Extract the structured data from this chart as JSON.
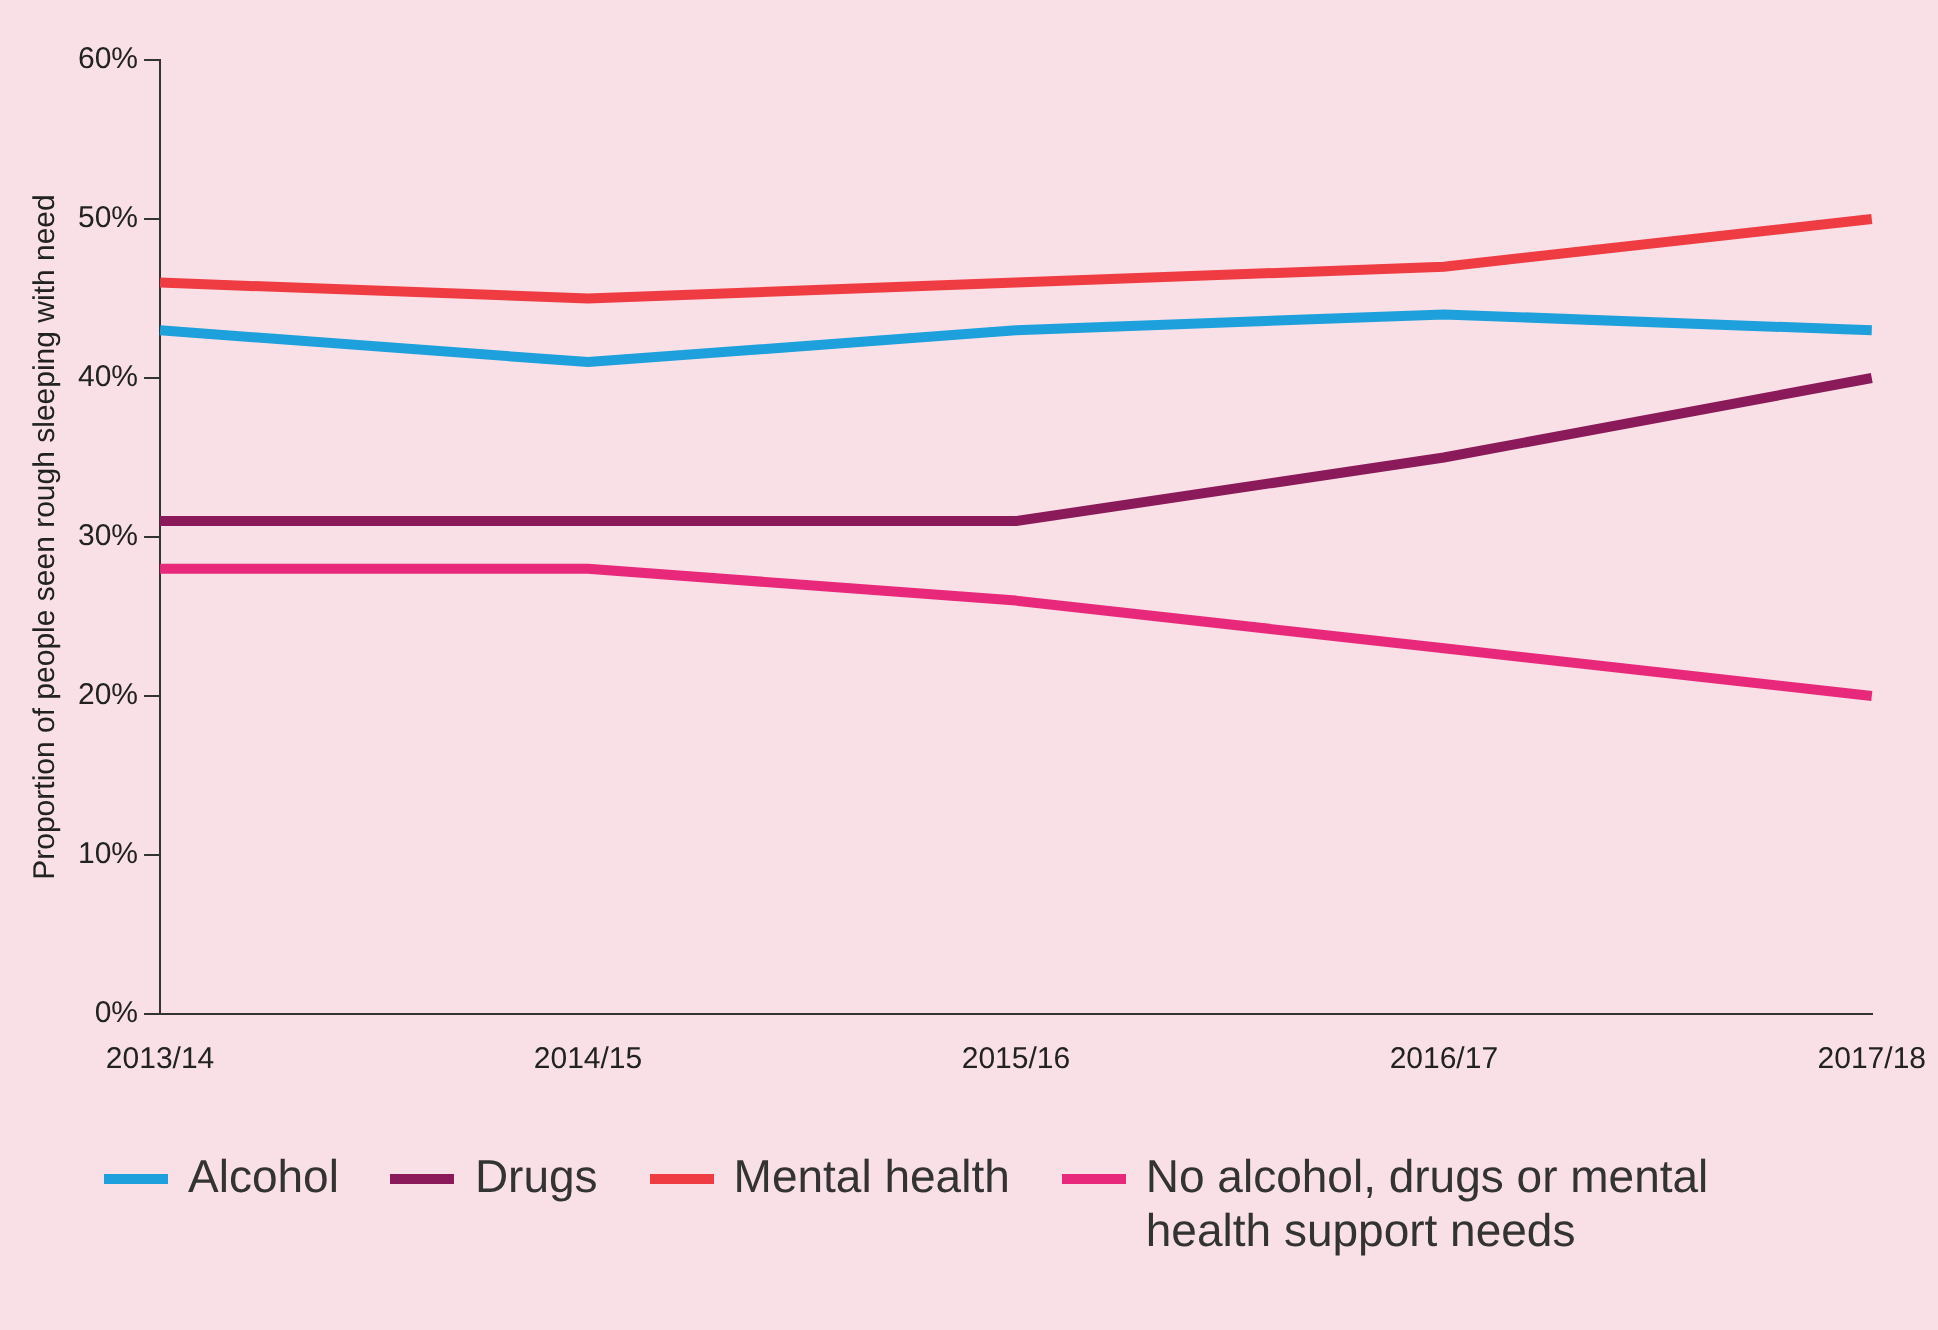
{
  "chart_data": {
    "type": "line",
    "ylabel": "Proportion of people seen rough sleeping with need",
    "categories": [
      "2013/14",
      "2014/15",
      "2015/16",
      "2016/17",
      "2017/18"
    ],
    "series": [
      {
        "name": "Alcohol",
        "color": "#1ea0dc",
        "values": [
          43,
          41,
          43,
          44,
          43
        ]
      },
      {
        "name": "Drugs",
        "color": "#8b1a5a",
        "values": [
          31,
          31,
          31,
          35,
          40
        ]
      },
      {
        "name": "Mental health",
        "color": "#ef3b42",
        "values": [
          46,
          45,
          46,
          47,
          50
        ]
      },
      {
        "name": "No alcohol, drugs or mental health support needs",
        "color": "#e8287a",
        "values": [
          28,
          28,
          26,
          23,
          20
        ]
      }
    ],
    "ylim": [
      0,
      60
    ],
    "yticks": [
      {
        "value": 0,
        "label": "0%"
      },
      {
        "value": 10,
        "label": "10%"
      },
      {
        "value": 20,
        "label": "20%"
      },
      {
        "value": 30,
        "label": "30%"
      },
      {
        "value": 40,
        "label": "40%"
      },
      {
        "value": 50,
        "label": "50%"
      },
      {
        "value": 60,
        "label": "60%"
      }
    ],
    "grid": false,
    "legend": "bottom",
    "marker": "none",
    "line_style": "solid"
  }
}
